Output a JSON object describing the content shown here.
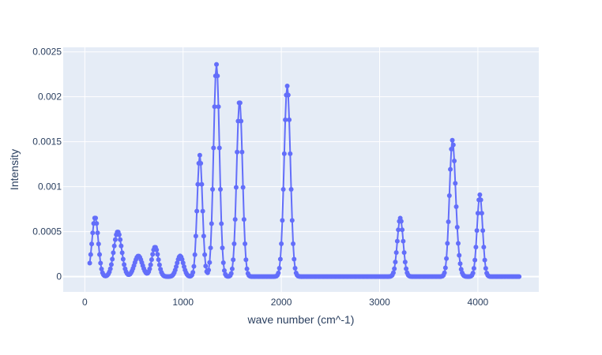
{
  "chart_data": {
    "type": "line",
    "mode": "lines+markers",
    "title": "",
    "xlabel": "wave number (cm^-1)",
    "ylabel": "Intensity",
    "xlim": [
      -220,
      4620
    ],
    "ylim": [
      -0.00017,
      0.00255
    ],
    "x_ticks": [
      0,
      1000,
      2000,
      3000,
      4000
    ],
    "x_tick_labels": [
      "0",
      "1000",
      "2000",
      "3000",
      "4000"
    ],
    "y_ticks": [
      0,
      0.0005,
      0.001,
      0.0015,
      0.002,
      0.0025
    ],
    "y_tick_labels": [
      "0",
      "0.0005",
      "0.001",
      "0.0015",
      "0.002",
      "0.0025"
    ],
    "grid": true,
    "colors": {
      "series": "#636efa",
      "plot_bg": "#e5ecf6",
      "grid": "#ffffff",
      "text": "#2a3f5f"
    },
    "x_range": [
      50,
      4420
    ],
    "peaks": [
      {
        "center": 105,
        "height": 0.00066,
        "width": 32
      },
      {
        "center": 335,
        "height": 0.0005,
        "width": 40
      },
      {
        "center": 545,
        "height": 0.00023,
        "width": 40
      },
      {
        "center": 715,
        "height": 0.00033,
        "width": 33
      },
      {
        "center": 970,
        "height": 0.00023,
        "width": 33
      },
      {
        "center": 1170,
        "height": 0.00135,
        "width": 27
      },
      {
        "center": 1340,
        "height": 0.00236,
        "width": 30
      },
      {
        "center": 1575,
        "height": 0.00196,
        "width": 30
      },
      {
        "center": 2060,
        "height": 0.00212,
        "width": 32
      },
      {
        "center": 3210,
        "height": 0.00065,
        "width": 30
      },
      {
        "center": 3740,
        "height": 0.00148,
        "width": 30
      },
      {
        "center": 3790,
        "height": 0.00018,
        "width": 28
      },
      {
        "center": 4020,
        "height": 0.00091,
        "width": 28
      }
    ],
    "series": [
      {
        "values_note": "points sampled every 10 cm^-1 across x_range from sum of peaks"
      }
    ]
  }
}
